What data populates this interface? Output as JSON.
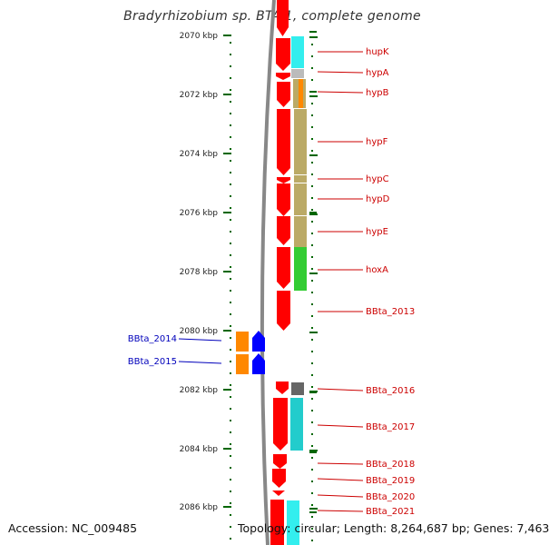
{
  "title": "Bradyrhizobium sp. BTAi1, complete genome",
  "footer": {
    "accession": "Accession: NC_009485",
    "summary": "Topology: circular; Length: 8,264,687 bp; Genes: 7,463"
  },
  "ruler": {
    "ticks": [
      "2070 kbp",
      "2072 kbp",
      "2074 kbp",
      "2076 kbp",
      "2078 kbp",
      "2080 kbp",
      "2082 kbp",
      "2084 kbp",
      "2086 kbp"
    ]
  },
  "genes_right": [
    "hupK",
    "hypA",
    "hypB",
    "hypF",
    "hypC",
    "hypD",
    "hypE",
    "hoxA",
    "BBta_2013",
    "BBta_2016",
    "BBta_2017",
    "BBta_2018",
    "BBta_2019",
    "BBta_2020",
    "BBta_2021"
  ],
  "genes_left": [
    "BBta_2014",
    "BBta_2015"
  ],
  "colors": {
    "gene_forward": "#ff0000",
    "gene_reverse": "#0000ff",
    "cog_cyan": "#33dddd",
    "cog_olive": "#bbaa66",
    "cog_green": "#33cc33",
    "cog_orange": "#ff8800",
    "cog_grey": "#777777",
    "label_right": "#cc0000",
    "label_left": "#0000bb",
    "tick": "#006600",
    "backbone": "#888888"
  }
}
